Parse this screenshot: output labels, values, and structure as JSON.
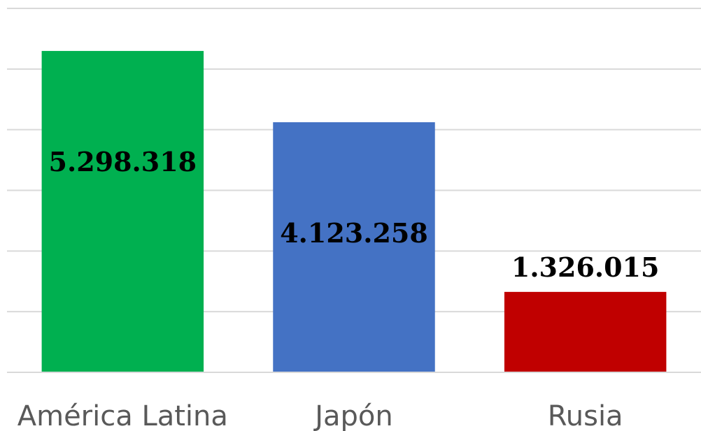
{
  "chart_data": {
    "type": "bar",
    "title": "",
    "xlabel": "",
    "ylabel": "",
    "categories": [
      "América Latina",
      "Japón",
      "Rusia"
    ],
    "values": [
      5298318,
      4123258,
      1326015
    ],
    "value_labels": [
      "5.298.318",
      "4.123.258",
      "1.326.015"
    ],
    "colors": [
      "#00b050",
      "#4472c4",
      "#c00000"
    ],
    "ylim": [
      0,
      6000000
    ],
    "grid": true,
    "legend": "none",
    "label_positions": [
      "inside",
      "inside",
      "above"
    ]
  }
}
